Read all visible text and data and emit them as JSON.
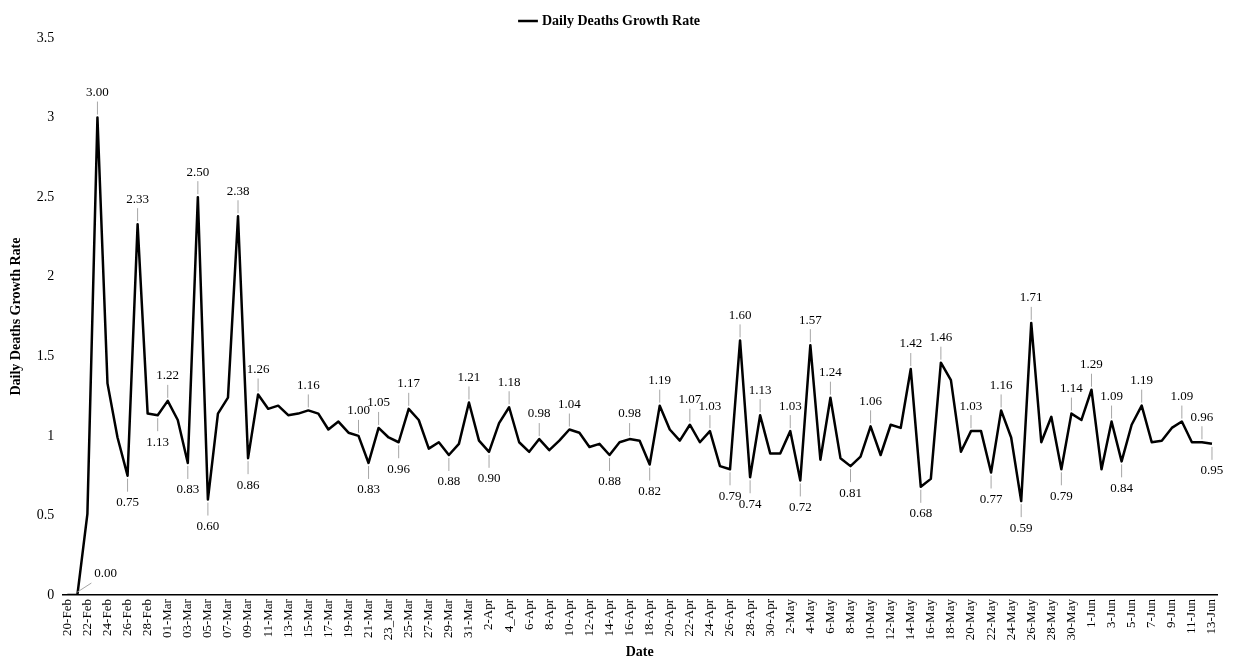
{
  "chart_data": {
    "type": "line",
    "xlabel": "Date",
    "ylabel": "Daily Deaths Growth Rate",
    "categories": [
      "20-Feb",
      null,
      "22-Feb",
      null,
      "24-Feb",
      null,
      "26-Feb",
      null,
      "28-Feb",
      null,
      "01-Mar",
      null,
      "03-Mar",
      null,
      "05-Mar",
      null,
      "07-Mar",
      null,
      "09-Mar",
      null,
      "11-Mar",
      null,
      "13-Mar",
      null,
      "15-Mar",
      null,
      "17-Mar",
      null,
      "19-Mar",
      null,
      "21-Mar",
      null,
      "23_Mar",
      null,
      "25-Mar",
      null,
      "27-Mar",
      null,
      "29-Mar",
      null,
      "31-Mar",
      null,
      "2-Apr",
      null,
      "4_Apr",
      null,
      "6-Apr",
      null,
      "8-Apr",
      null,
      "10-Apr",
      null,
      "12-Apr",
      null,
      "14-Apr",
      null,
      "16-Apr",
      null,
      "18-Apr",
      null,
      "20-Apr",
      null,
      "22-Apr",
      null,
      "24-Apr",
      null,
      "26-Apr",
      null,
      "28-Apr",
      null,
      "30-Apr",
      null,
      "2-May",
      null,
      "4-May",
      null,
      "6-May",
      null,
      "8-May",
      null,
      "10-May",
      null,
      "12-May",
      null,
      "14-May",
      null,
      "16-May",
      null,
      "18-May",
      null,
      "20-May",
      null,
      "22-May",
      null,
      "24-May",
      null,
      "26-May",
      null,
      "28-May",
      null,
      "30-May",
      null,
      "1-Jun",
      null,
      "3-Jun",
      null,
      "5-Jun",
      null,
      "7-Jun",
      null,
      "9-Jun",
      null,
      "11-Jun",
      null,
      "13-Jun"
    ],
    "series": [
      {
        "name": "Daily Deaths Growth Rate",
        "color": "#000000",
        "values": [
          0,
          0,
          0.51,
          3.0,
          1.33,
          0.99,
          0.75,
          2.33,
          1.14,
          1.13,
          1.22,
          1.1,
          0.83,
          2.5,
          0.6,
          1.14,
          1.24,
          2.38,
          0.86,
          1.26,
          1.17,
          1.19,
          1.13,
          1.14,
          1.16,
          1.14,
          1.04,
          1.09,
          1.02,
          1.0,
          0.83,
          1.05,
          0.99,
          0.96,
          1.17,
          1.1,
          0.92,
          0.96,
          0.88,
          0.95,
          1.21,
          0.97,
          0.9,
          1.08,
          1.18,
          0.96,
          0.9,
          0.98,
          0.91,
          0.97,
          1.04,
          1.02,
          0.93,
          0.95,
          0.88,
          0.96,
          0.98,
          0.97,
          0.82,
          1.19,
          1.04,
          0.97,
          1.07,
          0.96,
          1.03,
          0.81,
          0.79,
          1.6,
          0.74,
          1.13,
          0.89,
          0.89,
          1.03,
          0.72,
          1.57,
          0.85,
          1.24,
          0.86,
          0.81,
          0.87,
          1.06,
          0.88,
          1.07,
          1.05,
          1.42,
          0.68,
          0.73,
          1.46,
          1.35,
          0.9,
          1.03,
          1.03,
          0.77,
          1.16,
          0.99,
          0.59,
          1.71,
          0.96,
          1.12,
          0.79,
          1.14,
          1.1,
          1.29,
          0.79,
          1.09,
          0.84,
          1.07,
          1.19,
          0.96,
          0.97,
          1.05,
          1.09,
          0.96,
          0.96,
          0.95
        ],
        "value_labels": [
          null,
          "0.00",
          null,
          "3.00",
          null,
          null,
          "0.75",
          "2.33",
          null,
          "1.13",
          "1.22",
          null,
          "0.83",
          "2.50",
          "0.60",
          null,
          null,
          "2.38",
          "0.86",
          "1.26",
          null,
          null,
          null,
          null,
          "1.16",
          null,
          null,
          null,
          null,
          "1.00",
          "0.83",
          "1.05",
          null,
          "0.96",
          "1.17",
          null,
          null,
          null,
          "0.88",
          null,
          "1.21",
          null,
          "0.90",
          null,
          "1.18",
          null,
          null,
          "0.98",
          null,
          null,
          "1.04",
          null,
          null,
          null,
          "0.88",
          null,
          "0.98",
          null,
          "0.82",
          "1.19",
          null,
          null,
          "1.07",
          null,
          "1.03",
          null,
          "0.79",
          "1.60",
          "0.74",
          "1.13",
          null,
          null,
          "1.03",
          "0.72",
          "1.57",
          null,
          "1.24",
          null,
          "0.81",
          null,
          "1.06",
          null,
          null,
          null,
          "1.42",
          "0.68",
          null,
          "1.46",
          null,
          null,
          "1.03",
          null,
          "0.77",
          "1.16",
          null,
          "0.59",
          "1.71",
          null,
          null,
          "0.79",
          "1.14",
          null,
          "1.29",
          null,
          "1.09",
          "0.84",
          null,
          "1.19",
          null,
          null,
          null,
          "1.09",
          null,
          "0.96",
          "0.95"
        ]
      }
    ],
    "ylim": [
      0,
      3.5
    ],
    "yticks": [
      0,
      0.5,
      1,
      1.5,
      2,
      2.5,
      3,
      3.5
    ],
    "grid": false,
    "legend": "top",
    "marker": "none",
    "line_style": "solid"
  }
}
